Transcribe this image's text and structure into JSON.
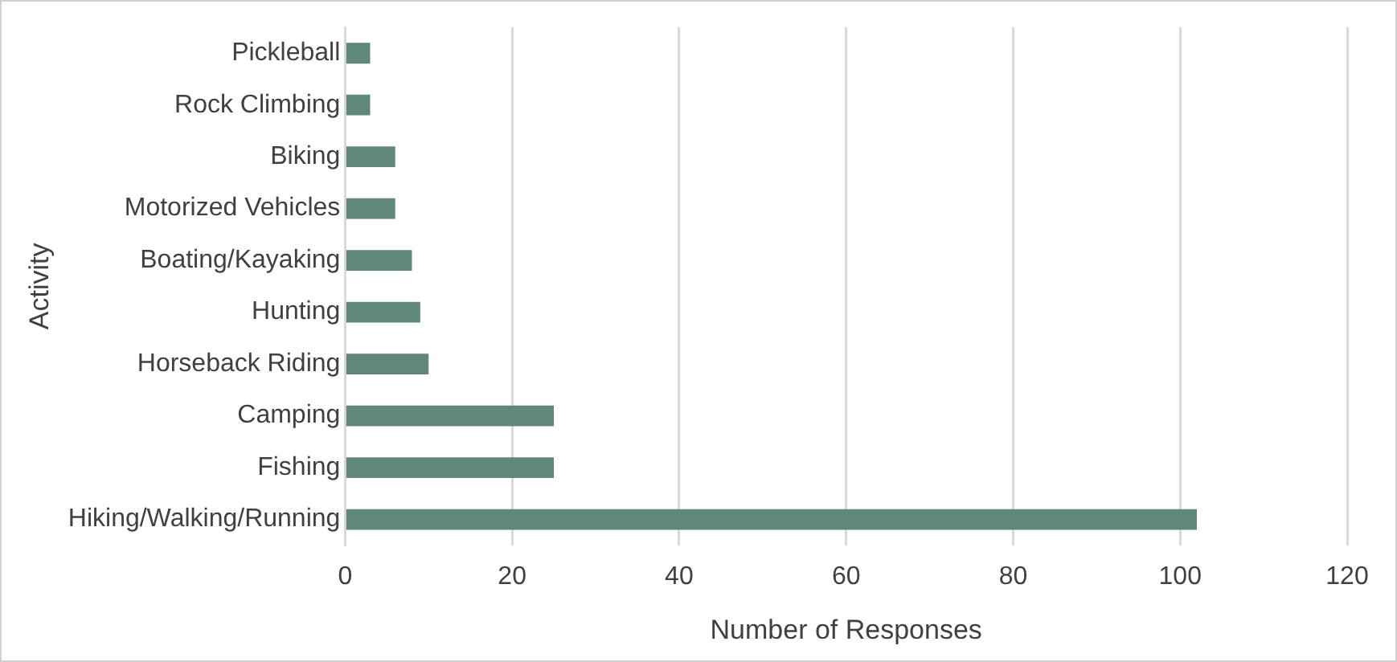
{
  "chart_data": {
    "type": "bar",
    "orientation": "horizontal",
    "xlabel": "Number of Responses",
    "ylabel": "Activity",
    "categories": [
      "Pickleball",
      "Rock Climbing",
      "Biking",
      "Motorized Vehicles",
      "Boating/Kayaking",
      "Hunting",
      "Horseback Riding",
      "Camping",
      "Fishing",
      "Hiking/Walking/Running"
    ],
    "values": [
      3,
      3,
      6,
      6,
      8,
      9,
      10,
      25,
      25,
      102
    ],
    "color": "#5f8878",
    "xlim": [
      0,
      120
    ],
    "xticks": [
      0,
      20,
      40,
      60,
      80,
      100,
      120
    ],
    "grid": "x",
    "legend": false
  }
}
